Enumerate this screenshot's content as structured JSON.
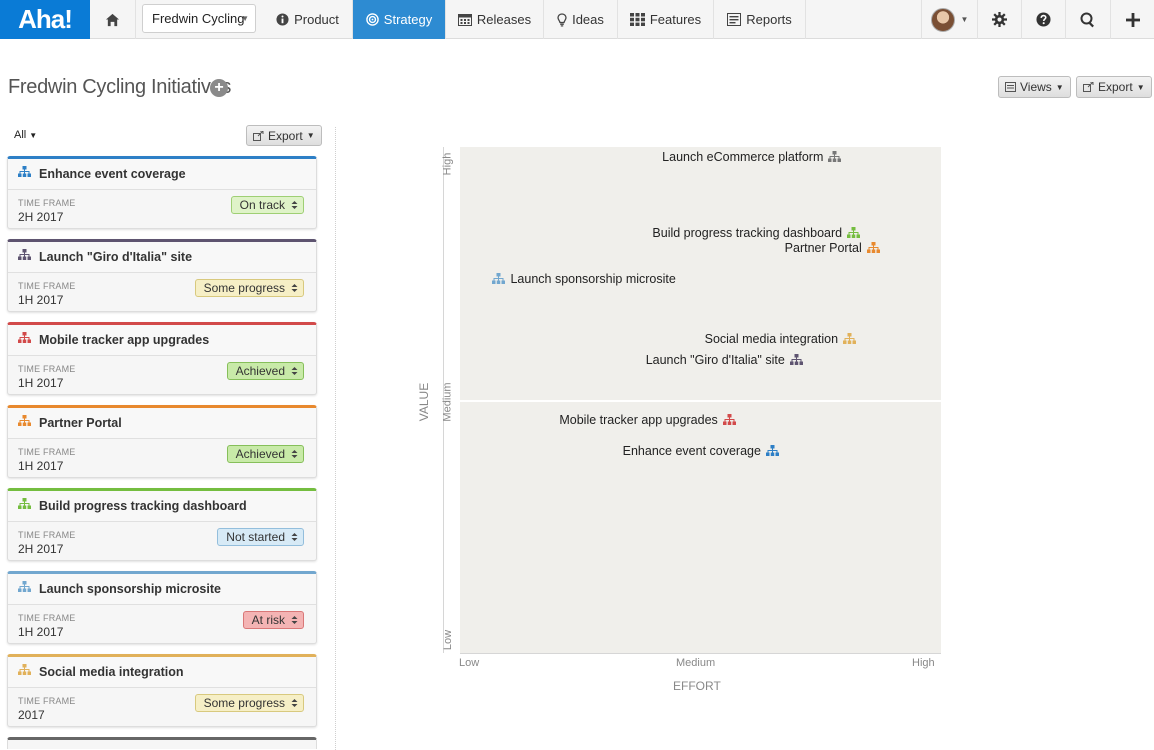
{
  "nav": {
    "logo": "Aha!",
    "workspace": "Fredwin Cycling",
    "items": [
      {
        "label": "Product",
        "icon": "info-icon"
      },
      {
        "label": "Strategy",
        "icon": "target-icon",
        "active": true
      },
      {
        "label": "Releases",
        "icon": "calendar-icon"
      },
      {
        "label": "Ideas",
        "icon": "lightbulb-icon"
      },
      {
        "label": "Features",
        "icon": "grid-icon"
      },
      {
        "label": "Reports",
        "icon": "list-icon"
      }
    ]
  },
  "page": {
    "title": "Fredwin Cycling Initiatives",
    "views_label": "Views",
    "export_label": "Export"
  },
  "panel": {
    "filter_label": "All",
    "export_label": "Export",
    "timeframe_label": "TIME FRAME",
    "cards": [
      {
        "name": "Enhance event coverage",
        "timeframe": "2H 2017",
        "status": "On track",
        "color": "#2d7fc6"
      },
      {
        "name": "Launch \"Giro d'Italia\" site",
        "timeframe": "1H 2017",
        "status": "Some progress",
        "color": "#5e5470"
      },
      {
        "name": "Mobile tracker app upgrades",
        "timeframe": "1H 2017",
        "status": "Achieved",
        "color": "#d24a4a"
      },
      {
        "name": "Partner Portal",
        "timeframe": "1H 2017",
        "status": "Achieved",
        "color": "#e8892e"
      },
      {
        "name": "Build progress tracking dashboard",
        "timeframe": "2H 2017",
        "status": "Not started",
        "color": "#74bd3f"
      },
      {
        "name": "Launch sponsorship microsite",
        "timeframe": "1H 2017",
        "status": "At risk",
        "color": "#72a7cf"
      },
      {
        "name": "Social media integration",
        "timeframe": "2017",
        "status": "Some progress",
        "color": "#e1b15a"
      }
    ]
  },
  "status_colors": {
    "On track": {
      "bg": "#dff3c8",
      "border": "#9fcf74"
    },
    "Some progress": {
      "bg": "#f6efc6",
      "border": "#d8c97e"
    },
    "Achieved": {
      "bg": "#c8eaa8",
      "border": "#86bf5a"
    },
    "Not started": {
      "bg": "#d7eaf6",
      "border": "#93bedc"
    },
    "At risk": {
      "bg": "#f4b4b4",
      "border": "#d97878"
    }
  },
  "chart_data": {
    "type": "scatter",
    "xlabel": "EFFORT",
    "ylabel": "VALUE",
    "x_ticks": [
      "Low",
      "Medium",
      "High"
    ],
    "y_ticks": [
      "Low",
      "Medium",
      "High"
    ],
    "xlim": [
      0,
      1
    ],
    "ylim": [
      0,
      1
    ],
    "points": [
      {
        "name": "Launch eCommerce platform",
        "x": 0.78,
        "y": 0.98,
        "color": "#777777",
        "label_side": "left"
      },
      {
        "name": "Build progress tracking dashboard",
        "x": 0.82,
        "y": 0.83,
        "color": "#74bd3f",
        "label_side": "left"
      },
      {
        "name": "Partner Portal",
        "x": 0.86,
        "y": 0.8,
        "color": "#e8892e",
        "label_side": "left"
      },
      {
        "name": "Launch sponsorship microsite",
        "x": 0.08,
        "y": 0.74,
        "color": "#72a7cf",
        "label_side": "right"
      },
      {
        "name": "Social media integration",
        "x": 0.81,
        "y": 0.62,
        "color": "#e1b15a",
        "label_side": "left"
      },
      {
        "name": "Launch \"Giro d'Italia\" site",
        "x": 0.7,
        "y": 0.58,
        "color": "#5e5470",
        "label_side": "left"
      },
      {
        "name": "Mobile tracker app upgrades",
        "x": 0.56,
        "y": 0.46,
        "color": "#d24a4a",
        "label_side": "left"
      },
      {
        "name": "Enhance event coverage",
        "x": 0.65,
        "y": 0.4,
        "color": "#2d7fc6",
        "label_side": "left"
      }
    ]
  }
}
